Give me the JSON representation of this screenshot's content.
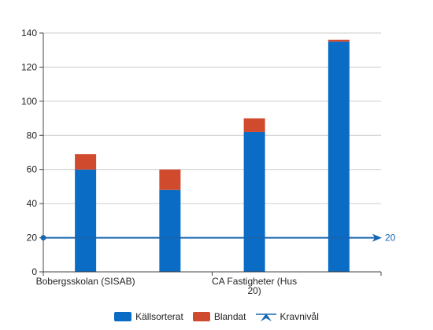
{
  "chart_data": {
    "type": "bar",
    "stacked": true,
    "categories": [
      "Bobergsskolan (SISAB)",
      "",
      "CA Fastigheter (Hus 20)",
      ""
    ],
    "category_label_lines": [
      [
        "Bobergsskolan (SISAB)"
      ],
      [],
      [
        "CA Fastigheter (Hus",
        "20)"
      ],
      []
    ],
    "series": [
      {
        "name": "Källsorterat",
        "values": [
          60,
          48,
          82,
          135
        ],
        "color": "#0a6cc4"
      },
      {
        "name": "Blandat",
        "values": [
          9,
          12,
          8,
          1
        ],
        "color": "#d04a2e"
      }
    ],
    "reference_line": {
      "name": "Kravnivål",
      "value": 20,
      "label": "20",
      "color": "#1766b0"
    },
    "ylim": [
      0,
      140
    ],
    "yticks": [
      "0",
      "20",
      "40",
      "60",
      "80",
      "100",
      "120",
      "140"
    ],
    "grid": true,
    "legend_position": "bottom"
  }
}
